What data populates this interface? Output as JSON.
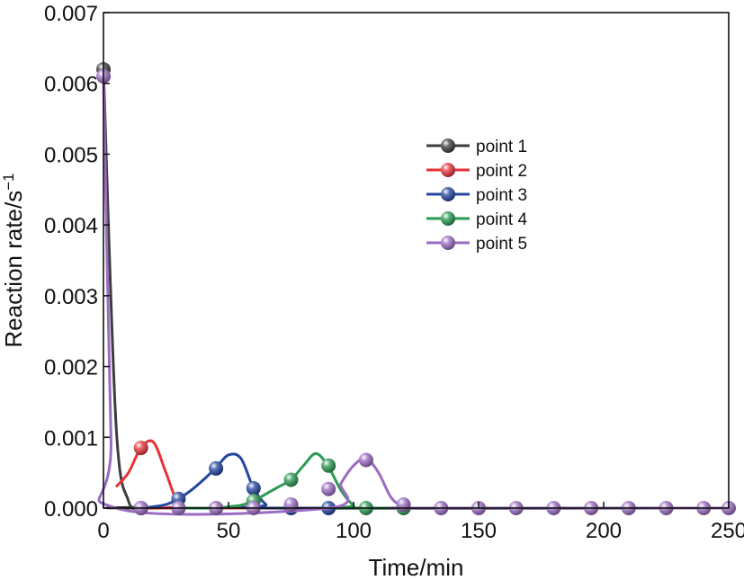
{
  "chart_data": {
    "type": "line",
    "title": "",
    "xlabel": "Time/min",
    "ylabel": "Reaction rate/s",
    "ylabel_superscript": "−1",
    "xlim": [
      0,
      250
    ],
    "ylim": [
      0,
      0.007
    ],
    "xticks": [
      0,
      50,
      100,
      150,
      200,
      250
    ],
    "xtick_labels": [
      "0",
      "50",
      "100",
      "150",
      "200",
      "250"
    ],
    "yticks": [
      0,
      0.001,
      0.002,
      0.003,
      0.004,
      0.005,
      0.006,
      0.007
    ],
    "ytick_labels": [
      "0.000",
      "0.001",
      "0.002",
      "0.003",
      "0.004",
      "0.005",
      "0.006",
      "0.007"
    ],
    "grid": false,
    "legend_position": "center-right",
    "series": [
      {
        "name": "point 1",
        "color": "#3d3d3d",
        "line": [
          [
            0,
            0.0062
          ],
          [
            5,
            0.0012
          ],
          [
            10,
            0.0001
          ],
          [
            15,
            2e-05
          ],
          [
            20,
            0
          ],
          [
            250,
            0
          ]
        ],
        "markers": [
          [
            0,
            0.0062
          ],
          [
            15,
            0
          ]
        ]
      },
      {
        "name": "point 2",
        "color": "#e8333a",
        "line": [
          [
            5,
            0.0003
          ],
          [
            10,
            0.0005
          ],
          [
            15,
            0.00085
          ],
          [
            20,
            0.00093
          ],
          [
            25,
            0.0005
          ],
          [
            30,
            5e-05
          ],
          [
            35,
            0
          ],
          [
            250,
            0
          ]
        ],
        "markers": [
          [
            15,
            0.00085
          ],
          [
            30,
            0
          ]
        ]
      },
      {
        "name": "point 3",
        "color": "#2446a0",
        "line": [
          [
            15,
            0
          ],
          [
            20,
            2e-05
          ],
          [
            25,
            5e-05
          ],
          [
            30,
            0.00013
          ],
          [
            35,
            0.00025
          ],
          [
            40,
            0.0004
          ],
          [
            45,
            0.00057
          ],
          [
            50,
            0.00075
          ],
          [
            55,
            0.0007
          ],
          [
            60,
            0.00028
          ],
          [
            65,
            5e-05
          ],
          [
            70,
            0
          ],
          [
            250,
            0
          ]
        ],
        "markers": [
          [
            15,
            0
          ],
          [
            30,
            0.00013
          ],
          [
            45,
            0.00056
          ],
          [
            60,
            0.00028
          ],
          [
            75,
            0
          ],
          [
            90,
            0
          ]
        ]
      },
      {
        "name": "point 4",
        "color": "#2a9a52",
        "line": [
          [
            30,
            0
          ],
          [
            45,
            0
          ],
          [
            50,
            2e-05
          ],
          [
            55,
            4e-05
          ],
          [
            60,
            0.0001
          ],
          [
            65,
            0.0002
          ],
          [
            70,
            0.0003
          ],
          [
            75,
            0.0004
          ],
          [
            80,
            0.0006
          ],
          [
            85,
            0.00077
          ],
          [
            90,
            0.00058
          ],
          [
            95,
            0.00025
          ],
          [
            100,
            4e-05
          ],
          [
            105,
            0
          ],
          [
            250,
            0
          ]
        ],
        "markers": [
          [
            45,
            0
          ],
          [
            60,
            0.0001
          ],
          [
            75,
            0.0004
          ],
          [
            90,
            0.0006
          ],
          [
            105,
            0
          ],
          [
            120,
            0
          ]
        ]
      },
      {
        "name": "point 5",
        "color": "#9b6bc2",
        "line": [
          [
            0,
            0.0061
          ],
          [
            3,
            0.001
          ],
          [
            5,
            0
          ],
          [
            90,
            0
          ],
          [
            95,
            0.00035
          ],
          [
            100,
            0.0006
          ],
          [
            105,
            0.0007
          ],
          [
            110,
            0.0005
          ],
          [
            115,
            0.00015
          ],
          [
            120,
            2e-05
          ],
          [
            125,
            0
          ],
          [
            250,
            0
          ]
        ],
        "markers": [
          [
            0,
            0.0061
          ],
          [
            15,
            0
          ],
          [
            30,
            0
          ],
          [
            45,
            0
          ],
          [
            60,
            0
          ],
          [
            75,
            5e-05
          ],
          [
            90,
            0.00027
          ],
          [
            105,
            0.00068
          ],
          [
            120,
            5e-05
          ],
          [
            135,
            0
          ],
          [
            150,
            0
          ],
          [
            165,
            0
          ],
          [
            180,
            0
          ],
          [
            195,
            0
          ],
          [
            210,
            0
          ],
          [
            225,
            0
          ],
          [
            240,
            0
          ],
          [
            250,
            0
          ]
        ]
      }
    ]
  }
}
